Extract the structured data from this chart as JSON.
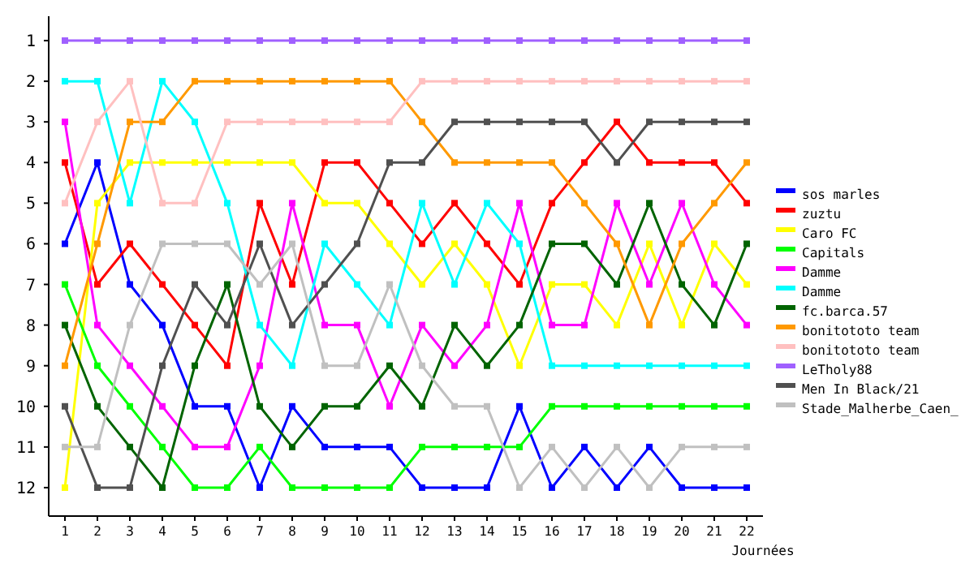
{
  "chart_data": {
    "type": "line",
    "xlabel": "Journées",
    "x": [
      1,
      2,
      3,
      4,
      5,
      6,
      7,
      8,
      9,
      10,
      11,
      12,
      13,
      14,
      15,
      16,
      17,
      18,
      19,
      20,
      21,
      22
    ],
    "xlim": [
      0.5,
      22.5
    ],
    "xticks": [
      1,
      2,
      3,
      4,
      5,
      6,
      7,
      8,
      9,
      10,
      11,
      12,
      13,
      14,
      15,
      16,
      17,
      18,
      19,
      20,
      21,
      22
    ],
    "ylim": [
      12.7,
      0.4
    ],
    "yticks": [
      1,
      2,
      3,
      4,
      5,
      6,
      7,
      8,
      9,
      10,
      11,
      12
    ],
    "grid": false,
    "legend": "right",
    "marker": "square",
    "line_style": "solid",
    "series": [
      {
        "name": "sos marles",
        "color": "#0000ff",
        "values": [
          6,
          4,
          7,
          8,
          10,
          10,
          12,
          10,
          11,
          11,
          11,
          12,
          12,
          12,
          10,
          12,
          11,
          12,
          11,
          12,
          12,
          12
        ]
      },
      {
        "name": "zuztu",
        "color": "#ff0000",
        "values": [
          4,
          7,
          6,
          7,
          8,
          9,
          5,
          7,
          4,
          4,
          5,
          6,
          5,
          6,
          7,
          5,
          4,
          3,
          4,
          4,
          4,
          5
        ]
      },
      {
        "name": "Caro FC",
        "color": "#ffff00",
        "values": [
          12,
          5,
          4,
          4,
          4,
          4,
          4,
          4,
          5,
          5,
          6,
          7,
          6,
          7,
          9,
          7,
          7,
          8,
          6,
          8,
          6,
          7
        ]
      },
      {
        "name": "Capitals",
        "color": "#00ff00",
        "values": [
          7,
          9,
          10,
          11,
          12,
          12,
          11,
          12,
          12,
          12,
          12,
          11,
          11,
          11,
          11,
          10,
          10,
          10,
          10,
          10,
          10,
          10
        ]
      },
      {
        "name": "Damme",
        "color": "#ff00ff",
        "values": [
          3,
          8,
          9,
          10,
          11,
          11,
          9,
          5,
          8,
          8,
          10,
          8,
          9,
          8,
          5,
          8,
          8,
          5,
          7,
          5,
          7,
          8
        ]
      },
      {
        "name": "Damme",
        "color": "#00ffff",
        "values": [
          2,
          2,
          5,
          2,
          3,
          5,
          8,
          9,
          6,
          7,
          8,
          5,
          7,
          5,
          6,
          9,
          9,
          9,
          9,
          9,
          9,
          9
        ]
      },
      {
        "name": "fc.barca.57",
        "color": "#006400",
        "values": [
          8,
          10,
          11,
          12,
          9,
          7,
          10,
          11,
          10,
          10,
          9,
          10,
          8,
          9,
          8,
          6,
          6,
          7,
          5,
          7,
          8,
          6
        ]
      },
      {
        "name": "bonitototo team",
        "color": "#ff9900",
        "values": [
          9,
          6,
          3,
          3,
          2,
          2,
          2,
          2,
          2,
          2,
          2,
          3,
          4,
          4,
          4,
          4,
          5,
          6,
          8,
          6,
          5,
          4
        ]
      },
      {
        "name": "bonitototo team",
        "color": "#ffc0c0",
        "values": [
          5,
          3,
          2,
          5,
          5,
          3,
          3,
          3,
          3,
          3,
          3,
          2,
          2,
          2,
          2,
          2,
          2,
          2,
          2,
          2,
          2,
          2
        ]
      },
      {
        "name": "LeTholy88",
        "color": "#a060ff",
        "values": [
          1,
          1,
          1,
          1,
          1,
          1,
          1,
          1,
          1,
          1,
          1,
          1,
          1,
          1,
          1,
          1,
          1,
          1,
          1,
          1,
          1,
          1
        ]
      },
      {
        "name": "Men In Black/21",
        "color": "#505050",
        "values": [
          10,
          12,
          12,
          9,
          7,
          8,
          6,
          8,
          7,
          6,
          4,
          4,
          3,
          3,
          3,
          3,
          3,
          4,
          3,
          3,
          3,
          3
        ]
      },
      {
        "name": "Stade_Malherbe_Caen_",
        "color": "#c0c0c0",
        "values": [
          11,
          11,
          8,
          6,
          6,
          6,
          7,
          6,
          9,
          9,
          7,
          9,
          10,
          10,
          12,
          11,
          12,
          11,
          12,
          11,
          11,
          11
        ]
      }
    ]
  }
}
